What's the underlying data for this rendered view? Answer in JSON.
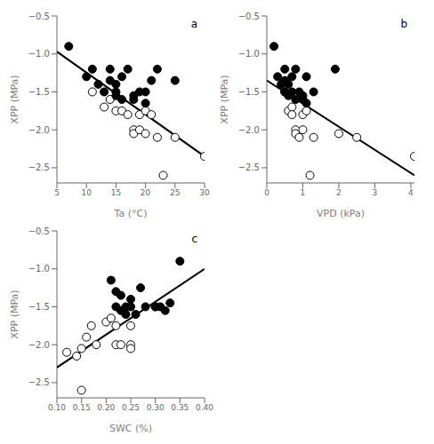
{
  "chart_data": [
    {
      "type": "scatter",
      "xlabel": "Ta (°C)",
      "ylabel": "XPP (MPa)",
      "xlim": [
        5,
        30
      ],
      "ylim": [
        -2.7,
        -0.5
      ],
      "xticks": [
        5,
        10,
        15,
        20,
        25,
        30
      ],
      "yticks": [
        {
          "value": -2.5,
          "label": "−2.5"
        },
        {
          "value": -2.0,
          "label": "−2.0"
        },
        {
          "value": -1.5,
          "label": "−1.5"
        },
        {
          "value": -1.0,
          "label": "−1.0"
        },
        {
          "value": -0.5,
          "label": "−0.5"
        }
      ],
      "annotations": [
        "a"
      ],
      "series": [
        {
          "type": "scatter",
          "marker": "open_circle",
          "color": "#000000",
          "x": [
            11,
            13,
            14,
            15,
            16,
            17,
            18,
            18,
            19,
            19,
            20,
            20,
            21,
            22,
            23,
            25,
            30
          ],
          "values": [
            -1.5,
            -1.7,
            -1.6,
            -1.75,
            -1.75,
            -1.8,
            -2.0,
            -2.05,
            -2.0,
            -1.8,
            -1.75,
            -2.05,
            -1.8,
            -2.1,
            -2.6,
            -2.1,
            -2.35
          ]
        },
        {
          "type": "scatter",
          "marker": "filled_circle",
          "color": "#000000",
          "x": [
            7,
            10,
            11,
            12,
            13,
            14,
            14,
            15,
            15,
            15,
            16,
            16,
            17,
            18,
            18,
            19,
            20,
            20,
            21,
            22,
            25
          ],
          "values": [
            -0.9,
            -1.3,
            -1.2,
            -1.4,
            -1.5,
            -1.2,
            -1.35,
            -1.4,
            -1.5,
            -1.55,
            -1.3,
            -1.6,
            -1.2,
            -1.55,
            -1.6,
            -1.5,
            -1.65,
            -1.5,
            -1.35,
            -1.2,
            -1.35
          ]
        },
        {
          "type": "line",
          "color": "#000000",
          "x": [
            5,
            30
          ],
          "values": [
            -0.97,
            -2.35
          ]
        }
      ]
    },
    {
      "type": "scatter",
      "xlabel": "VPD (kPa)",
      "ylabel": "XPP (MPa)",
      "xlim": [
        0,
        4.1
      ],
      "ylim": [
        -2.7,
        -0.5
      ],
      "xticks": [
        0,
        1,
        2,
        3,
        4
      ],
      "yticks": [
        {
          "value": -2.5,
          "label": "−2.5"
        },
        {
          "value": -2.0,
          "label": "−2.0"
        },
        {
          "value": -1.5,
          "label": "−1.5"
        },
        {
          "value": -1.0,
          "label": "−1.0"
        },
        {
          "value": -0.5,
          "label": "−0.5"
        }
      ],
      "annotations": [
        "b"
      ],
      "series": [
        {
          "type": "scatter",
          "marker": "open_circle",
          "color": "#000000",
          "x": [
            0.5,
            0.6,
            0.7,
            0.7,
            0.8,
            0.8,
            0.9,
            1.0,
            1.0,
            1.1,
            1.2,
            1.3,
            2.0,
            2.5,
            4.1
          ],
          "values": [
            -1.5,
            -1.75,
            -1.7,
            -1.8,
            -2.0,
            -2.05,
            -2.1,
            -1.8,
            -2.0,
            -1.75,
            -2.6,
            -2.1,
            -2.05,
            -2.1,
            -2.35
          ]
        },
        {
          "type": "scatter",
          "marker": "filled_circle",
          "color": "#000000",
          "x": [
            0.2,
            0.3,
            0.4,
            0.5,
            0.5,
            0.5,
            0.6,
            0.6,
            0.7,
            0.7,
            0.8,
            0.8,
            0.9,
            1.0,
            1.0,
            1.1,
            1.1,
            1.3,
            1.9
          ],
          "values": [
            -0.9,
            -1.3,
            -1.4,
            -1.2,
            -1.35,
            -1.5,
            -1.4,
            -1.55,
            -1.3,
            -1.5,
            -1.2,
            -1.6,
            -1.5,
            -1.55,
            -1.6,
            -1.3,
            -1.65,
            -1.5,
            -1.2
          ]
        },
        {
          "type": "line",
          "color": "#000000",
          "x": [
            0,
            4.1
          ],
          "values": [
            -1.35,
            -2.6
          ]
        }
      ]
    },
    {
      "type": "scatter",
      "xlabel": "SWC (%)",
      "ylabel": "XPP (MPa)",
      "xlim": [
        0.1,
        0.4
      ],
      "ylim": [
        -2.7,
        -0.5
      ],
      "xticks": [
        {
          "value": 0.1,
          "label": "0.10"
        },
        0.15,
        {
          "value": 0.2,
          "label": "0.20"
        },
        0.25,
        {
          "value": 0.3,
          "label": "0.30"
        },
        0.35,
        {
          "value": 0.4,
          "label": "0.40"
        }
      ],
      "yticks": [
        {
          "value": -2.5,
          "label": "−2.5"
        },
        {
          "value": -2.0,
          "label": "−2.0"
        },
        {
          "value": -1.5,
          "label": "−1.5"
        },
        {
          "value": -1.0,
          "label": "−1.0"
        },
        {
          "value": -0.5,
          "label": "−0.5"
        }
      ],
      "annotations": [
        "c"
      ],
      "series": [
        {
          "type": "scatter",
          "marker": "open_circle",
          "color": "#000000",
          "x": [
            0.12,
            0.14,
            0.15,
            0.15,
            0.16,
            0.17,
            0.18,
            0.2,
            0.21,
            0.22,
            0.22,
            0.23,
            0.25,
            0.25,
            0.25
          ],
          "values": [
            -2.1,
            -2.15,
            -2.6,
            -2.05,
            -1.9,
            -1.75,
            -2.0,
            -1.7,
            -1.65,
            -1.75,
            -2.0,
            -2.0,
            -2.0,
            -2.05,
            -1.75
          ]
        },
        {
          "type": "scatter",
          "marker": "filled_circle",
          "color": "#000000",
          "x": [
            0.21,
            0.22,
            0.22,
            0.23,
            0.23,
            0.24,
            0.24,
            0.25,
            0.25,
            0.26,
            0.27,
            0.28,
            0.3,
            0.3,
            0.31,
            0.32,
            0.33,
            0.35
          ],
          "values": [
            -1.15,
            -1.3,
            -1.5,
            -1.35,
            -1.55,
            -1.5,
            -1.6,
            -1.4,
            -1.5,
            -1.6,
            -1.25,
            -1.5,
            -1.5,
            -1.5,
            -1.5,
            -1.55,
            -1.45,
            -0.9
          ]
        },
        {
          "type": "line",
          "color": "#000000",
          "x": [
            0.1,
            0.4
          ],
          "values": [
            -2.3,
            -1.0
          ]
        }
      ]
    }
  ]
}
